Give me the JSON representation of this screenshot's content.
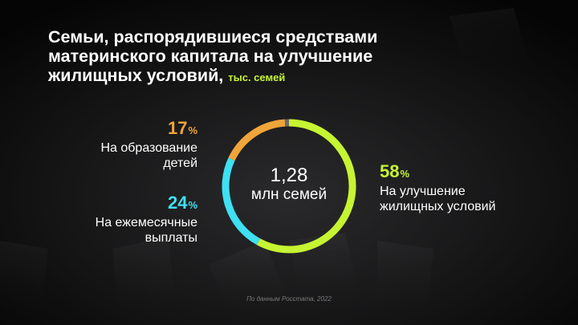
{
  "title": {
    "line1": "Семьи, распорядившиеся средствами",
    "line2": "материнского капитала на улучшение",
    "line3": "жилищных условий,",
    "unit": "тыс. семей"
  },
  "center": {
    "value": "1,28",
    "unit": "млн семей"
  },
  "source": "По данным Росстата, 2022",
  "colors": {
    "housing": "#c6f432",
    "monthly": "#3ee0f2",
    "education": "#f0a53a",
    "other": "#6b6b6b"
  },
  "chart_data": {
    "type": "pie",
    "series": [
      {
        "key": "housing",
        "pct_label": "58",
        "value": 58,
        "desc1": "На улучшение",
        "desc2": "жилищных условий"
      },
      {
        "key": "monthly",
        "pct_label": "24",
        "value": 24,
        "desc1": "На ежемесячные",
        "desc2": "выплаты"
      },
      {
        "key": "education",
        "pct_label": "17",
        "value": 17,
        "desc1": "На образование",
        "desc2": "детей"
      }
    ],
    "percent_sign": "%"
  }
}
